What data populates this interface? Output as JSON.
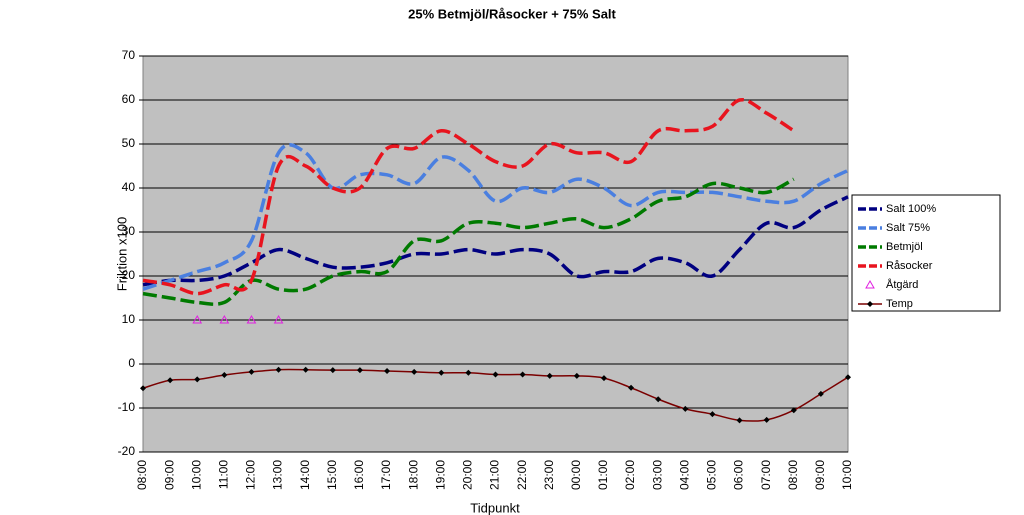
{
  "chart_data": {
    "type": "line",
    "title": "25% Betmjöl/Råsocker + 75% Salt",
    "ylabel": "Friktion x100",
    "xlabel": "Tidpunkt",
    "categories": [
      "08:00",
      "09:00",
      "10:00",
      "11:00",
      "12:00",
      "13:00",
      "14:00",
      "15:00",
      "16:00",
      "17:00",
      "18:00",
      "19:00",
      "20:00",
      "21:00",
      "22:00",
      "23:00",
      "00:00",
      "01:00",
      "02:00",
      "03:00",
      "04:00",
      "05:00",
      "06:00",
      "07:00",
      "08:00",
      "09:00",
      "10:00"
    ],
    "ylim": [
      -20,
      70
    ],
    "yticks": [
      -20,
      -10,
      0,
      10,
      20,
      30,
      40,
      50,
      60,
      70
    ],
    "grid": true,
    "smooth": true,
    "legend": "right",
    "series": [
      {
        "name": "Salt 100%",
        "color": "#000080",
        "dashed": true,
        "marker": "none",
        "values": [
          18,
          19,
          19,
          20,
          23,
          26,
          24,
          22,
          22,
          23,
          25,
          25,
          26,
          25,
          26,
          25,
          20,
          21,
          21,
          24,
          23,
          20,
          26,
          32,
          31,
          35,
          38
        ]
      },
      {
        "name": "Salt 75%",
        "color": "#4a7fe0",
        "dashed": true,
        "marker": "none",
        "values": [
          17,
          19,
          21,
          23,
          28,
          48,
          48,
          40,
          43,
          43,
          41,
          47,
          44,
          37,
          40,
          39,
          42,
          40,
          36,
          39,
          39,
          39,
          38,
          37,
          37,
          41,
          44
        ]
      },
      {
        "name": "Betmjöl",
        "color": "#007a00",
        "dashed": true,
        "marker": "none",
        "values": [
          16,
          15,
          14,
          14,
          19,
          17,
          17,
          20,
          21,
          21,
          28,
          28,
          32,
          32,
          31,
          32,
          33,
          31,
          33,
          37,
          38,
          41,
          40,
          39,
          42,
          null,
          null
        ]
      },
      {
        "name": "Råsocker",
        "color": "#e8141e",
        "dashed": true,
        "marker": "none",
        "values": [
          19,
          18,
          16,
          18,
          19,
          45,
          45,
          40,
          40,
          49,
          49,
          53,
          50,
          46,
          45,
          50,
          48,
          48,
          46,
          53,
          53,
          54,
          60,
          57,
          53,
          null,
          null
        ]
      },
      {
        "name": "Åtgärd",
        "color": "#e020e0",
        "line": false,
        "marker": "triangle",
        "values": [
          null,
          null,
          10,
          10,
          10,
          10,
          null,
          null,
          null,
          null,
          null,
          null,
          null,
          null,
          null,
          null,
          null,
          null,
          null,
          null,
          null,
          null,
          null,
          null,
          null,
          null,
          null
        ]
      },
      {
        "name": "Temp",
        "color": "#7a0000",
        "marker": "diamond",
        "values": [
          -5.5,
          -3.7,
          -3.5,
          -2.5,
          -1.8,
          -1.3,
          -1.3,
          -1.4,
          -1.4,
          -1.6,
          -1.8,
          -2,
          -2,
          -2.4,
          -2.4,
          -2.7,
          -2.7,
          -3.2,
          -5.4,
          -8,
          -10.2,
          -11.4,
          -12.8,
          -12.7,
          -10.5,
          -6.8,
          -3
        ]
      }
    ]
  }
}
